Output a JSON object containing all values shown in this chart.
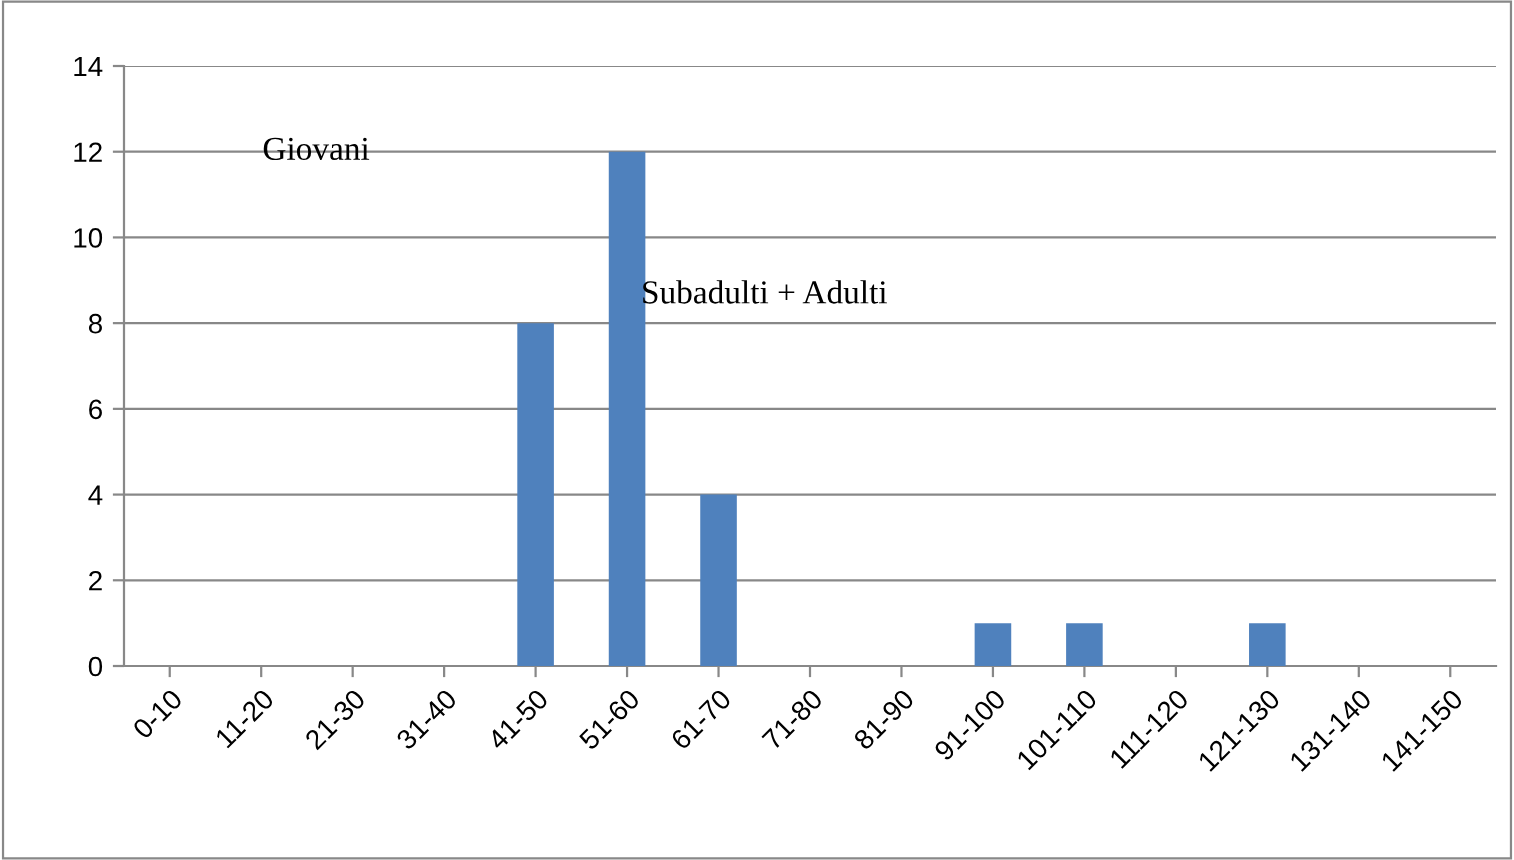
{
  "chart_data": {
    "type": "bar",
    "categories": [
      "0-10",
      "11-20",
      "21-30",
      "31-40",
      "41-50",
      "51-60",
      "61-70",
      "71-80",
      "81-90",
      "91-100",
      "101-110",
      "111-120",
      "121-130",
      "131-140",
      "141-150"
    ],
    "values": [
      0,
      0,
      0,
      0,
      8,
      12,
      4,
      0,
      0,
      1,
      1,
      0,
      1,
      0,
      0
    ],
    "color": "#4f81bd",
    "ylim": [
      0,
      14
    ],
    "yticks": [
      0,
      2,
      4,
      6,
      8,
      10,
      12,
      14
    ],
    "grid": "y",
    "annotations": [
      "Giovani",
      "Subadulti + Adulti"
    ]
  }
}
